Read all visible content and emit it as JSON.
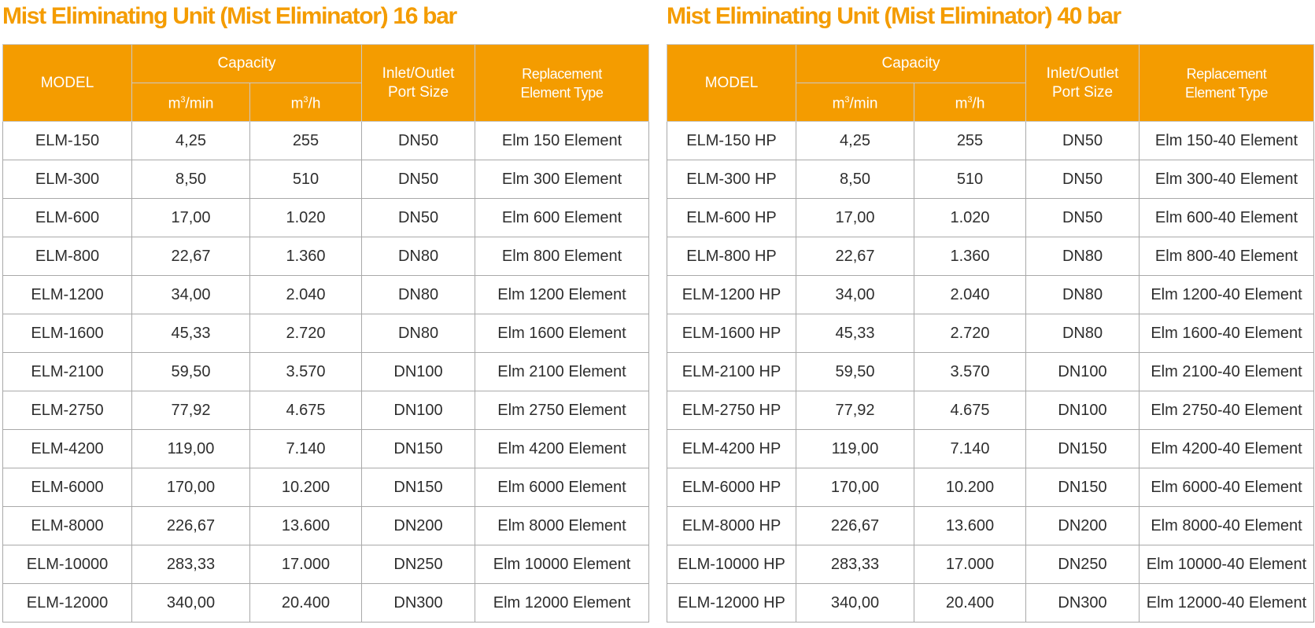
{
  "tables": [
    {
      "title": "Mist Eliminating Unit (Mist Eliminator) 16 bar",
      "headers": {
        "model": "MODEL",
        "capacity": "Capacity",
        "unit1": "m",
        "unit1_suffix": "/min",
        "unit2": "m",
        "unit2_suffix": "/h",
        "unit_exp": "3",
        "port_line1": "Inlet/Outlet",
        "port_line2": "Port Size",
        "repl_line1": "Replacement",
        "repl_line2": "Element Type"
      },
      "rows": [
        [
          "ELM-150",
          "4,25",
          "255",
          "DN50",
          "Elm 150 Element"
        ],
        [
          "ELM-300",
          "8,50",
          "510",
          "DN50",
          "Elm 300 Element"
        ],
        [
          "ELM-600",
          "17,00",
          "1.020",
          "DN50",
          "Elm 600 Element"
        ],
        [
          "ELM-800",
          "22,67",
          "1.360",
          "DN80",
          "Elm 800 Element"
        ],
        [
          "ELM-1200",
          "34,00",
          "2.040",
          "DN80",
          "Elm 1200 Element"
        ],
        [
          "ELM-1600",
          "45,33",
          "2.720",
          "DN80",
          "Elm 1600 Element"
        ],
        [
          "ELM-2100",
          "59,50",
          "3.570",
          "DN100",
          "Elm 2100 Element"
        ],
        [
          "ELM-2750",
          "77,92",
          "4.675",
          "DN100",
          "Elm 2750 Element"
        ],
        [
          "ELM-4200",
          "119,00",
          "7.140",
          "DN150",
          "Elm 4200 Element"
        ],
        [
          "ELM-6000",
          "170,00",
          "10.200",
          "DN150",
          "Elm 6000 Element"
        ],
        [
          "ELM-8000",
          "226,67",
          "13.600",
          "DN200",
          "Elm 8000 Element"
        ],
        [
          "ELM-10000",
          "283,33",
          "17.000",
          "DN250",
          "Elm 10000 Element"
        ],
        [
          "ELM-12000",
          "340,00",
          "20.400",
          "DN300",
          "Elm 12000 Element"
        ]
      ]
    },
    {
      "title": "Mist Eliminating Unit (Mist Eliminator) 40 bar",
      "headers": {
        "model": "MODEL",
        "capacity": "Capacity",
        "unit1": "m",
        "unit1_suffix": "/min",
        "unit2": "m",
        "unit2_suffix": "/h",
        "unit_exp": "3",
        "port_line1": "Inlet/Outlet",
        "port_line2": "Port Size",
        "repl_line1": "Replacement",
        "repl_line2": "Element Type"
      },
      "rows": [
        [
          "ELM-150 HP",
          "4,25",
          "255",
          "DN50",
          "Elm 150-40 Element"
        ],
        [
          "ELM-300 HP",
          "8,50",
          "510",
          "DN50",
          "Elm 300-40 Element"
        ],
        [
          "ELM-600 HP",
          "17,00",
          "1.020",
          "DN50",
          "Elm 600-40 Element"
        ],
        [
          "ELM-800 HP",
          "22,67",
          "1.360",
          "DN80",
          "Elm 800-40 Element"
        ],
        [
          "ELM-1200 HP",
          "34,00",
          "2.040",
          "DN80",
          "Elm 1200-40 Element"
        ],
        [
          "ELM-1600 HP",
          "45,33",
          "2.720",
          "DN80",
          "Elm 1600-40 Element"
        ],
        [
          "ELM-2100 HP",
          "59,50",
          "3.570",
          "DN100",
          "Elm 2100-40 Element"
        ],
        [
          "ELM-2750 HP",
          "77,92",
          "4.675",
          "DN100",
          "Elm 2750-40 Element"
        ],
        [
          "ELM-4200 HP",
          "119,00",
          "7.140",
          "DN150",
          "Elm 4200-40 Element"
        ],
        [
          "ELM-6000 HP",
          "170,00",
          "10.200",
          "DN150",
          "Elm 6000-40 Element"
        ],
        [
          "ELM-8000 HP",
          "226,67",
          "13.600",
          "DN200",
          "Elm 8000-40 Element"
        ],
        [
          "ELM-10000 HP",
          "283,33",
          "17.000",
          "DN250",
          "Elm 10000-40 Element"
        ],
        [
          "ELM-12000 HP",
          "340,00",
          "20.400",
          "DN300",
          "Elm 12000-40 Element"
        ]
      ]
    }
  ],
  "colors": {
    "header_bg": "#f49c00",
    "title_text": "#f49c00",
    "header_text": "#ffffff",
    "cell_text": "#2e2e2e",
    "border": "#a9a9a9"
  }
}
